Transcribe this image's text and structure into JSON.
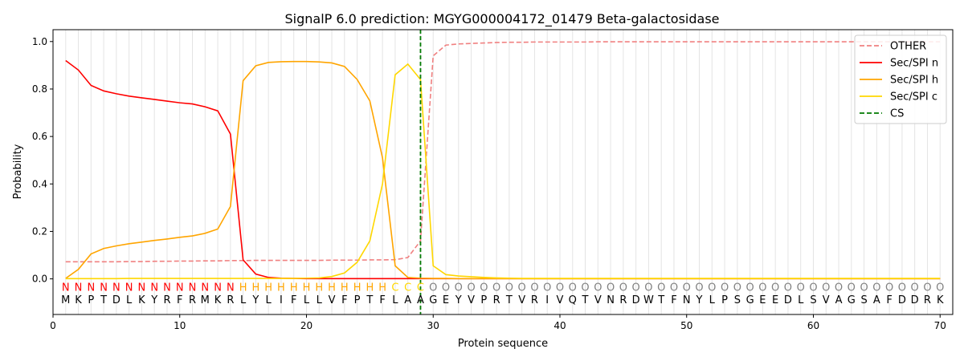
{
  "chart_data": {
    "type": "line",
    "title": "SignalP 6.0 prediction: MGYG000004172_01479 Beta-galactosidase",
    "xlabel": "Protein sequence",
    "ylabel": "Probability",
    "xlim": [
      0,
      71
    ],
    "ylim": [
      -0.15,
      1.05
    ],
    "xticks": [
      0,
      10,
      20,
      30,
      40,
      50,
      60,
      70
    ],
    "yticks": [
      0.0,
      0.2,
      0.4,
      0.6,
      0.8,
      1.0
    ],
    "xtick_labels": [
      "0",
      "10",
      "20",
      "30",
      "40",
      "50",
      "60",
      "70"
    ],
    "ytick_labels": [
      "0.0",
      "0.2",
      "0.4",
      "0.6",
      "0.8",
      "1.0"
    ],
    "grid": "vertical lines at each residue",
    "legend_position": "top-right",
    "sequence": [
      "M",
      "K",
      "P",
      "T",
      "D",
      "L",
      "K",
      "Y",
      "R",
      "F",
      "R",
      "M",
      "K",
      "R",
      "L",
      "Y",
      "L",
      "I",
      "F",
      "L",
      "L",
      "V",
      "F",
      "P",
      "T",
      "F",
      "L",
      "A",
      "A",
      "G",
      "E",
      "Y",
      "V",
      "P",
      "R",
      "T",
      "V",
      "R",
      "I",
      "V",
      "Q",
      "T",
      "V",
      "N",
      "R",
      "D",
      "W",
      "T",
      "F",
      "N",
      "Y",
      "L",
      "P",
      "S",
      "G",
      "E",
      "E",
      "D",
      "L",
      "S",
      "V",
      "A",
      "G",
      "S",
      "A",
      "F",
      "D",
      "D",
      "R",
      "K"
    ],
    "labels": [
      "N",
      "N",
      "N",
      "N",
      "N",
      "N",
      "N",
      "N",
      "N",
      "N",
      "N",
      "N",
      "N",
      "N",
      "H",
      "H",
      "H",
      "H",
      "H",
      "H",
      "H",
      "H",
      "H",
      "H",
      "H",
      "H",
      "C",
      "C",
      "C",
      "O",
      "O",
      "O",
      "O",
      "O",
      "O",
      "O",
      "O",
      "O",
      "O",
      "O",
      "O",
      "O",
      "O",
      "O",
      "O",
      "O",
      "O",
      "O",
      "O",
      "O",
      "O",
      "O",
      "O",
      "O",
      "O",
      "O",
      "O",
      "O",
      "O",
      "O",
      "O",
      "O",
      "O",
      "O",
      "O",
      "O",
      "O",
      "O",
      "O",
      "O"
    ],
    "label_colors": {
      "N": "#ff0000",
      "H": "#ffa500",
      "C": "#ffd700",
      "O": "#808080"
    },
    "cleavage_site": 29,
    "series": [
      {
        "name": "OTHER",
        "color": "#f08080",
        "dash": "dashed",
        "values": [
          0.072,
          0.072,
          0.072,
          0.072,
          0.072,
          0.073,
          0.073,
          0.074,
          0.074,
          0.075,
          0.075,
          0.076,
          0.076,
          0.077,
          0.077,
          0.078,
          0.078,
          0.078,
          0.078,
          0.078,
          0.078,
          0.079,
          0.079,
          0.079,
          0.08,
          0.08,
          0.081,
          0.09,
          0.16,
          0.94,
          0.985,
          0.99,
          0.992,
          0.994,
          0.996,
          0.997,
          0.997,
          0.998,
          0.998,
          0.998,
          0.998,
          0.998,
          0.999,
          0.999,
          0.999,
          0.999,
          0.999,
          0.999,
          0.999,
          0.999,
          0.999,
          0.999,
          0.999,
          0.999,
          0.999,
          0.999,
          0.999,
          0.999,
          0.999,
          0.999,
          0.999,
          0.999,
          0.999,
          0.999,
          0.999,
          0.999,
          0.999,
          0.999,
          0.999,
          0.999
        ]
      },
      {
        "name": "Sec/SPI n",
        "color": "#ff0000",
        "dash": "solid",
        "values": [
          0.92,
          0.88,
          0.815,
          0.792,
          0.78,
          0.77,
          0.763,
          0.756,
          0.749,
          0.742,
          0.737,
          0.725,
          0.708,
          0.61,
          0.08,
          0.02,
          0.006,
          0.003,
          0.002,
          0.001,
          0.001,
          0.001,
          0.001,
          0.001,
          0.001,
          0.001,
          0.001,
          0.001,
          0.001,
          0.001,
          0.001,
          0.001,
          0.001,
          0.001,
          0.001,
          0.001,
          0.001,
          0.001,
          0.001,
          0.001,
          0.001,
          0.001,
          0.001,
          0.001,
          0.001,
          0.001,
          0.001,
          0.001,
          0.001,
          0.001,
          0.001,
          0.001,
          0.001,
          0.001,
          0.001,
          0.001,
          0.001,
          0.001,
          0.001,
          0.001,
          0.001,
          0.001,
          0.001,
          0.001,
          0.001,
          0.001,
          0.001,
          0.001,
          0.001,
          0.001
        ]
      },
      {
        "name": "Sec/SPI h",
        "color": "#ffa500",
        "dash": "solid",
        "values": [
          0.002,
          0.04,
          0.105,
          0.128,
          0.139,
          0.148,
          0.155,
          0.162,
          0.168,
          0.175,
          0.181,
          0.192,
          0.21,
          0.305,
          0.835,
          0.898,
          0.912,
          0.915,
          0.916,
          0.916,
          0.914,
          0.91,
          0.895,
          0.84,
          0.75,
          0.51,
          0.055,
          0.006,
          0.003,
          0.002,
          0.002,
          0.001,
          0.001,
          0.001,
          0.001,
          0.001,
          0.001,
          0.001,
          0.001,
          0.001,
          0.001,
          0.001,
          0.001,
          0.001,
          0.001,
          0.001,
          0.001,
          0.001,
          0.001,
          0.001,
          0.001,
          0.001,
          0.001,
          0.001,
          0.001,
          0.001,
          0.001,
          0.001,
          0.001,
          0.001,
          0.001,
          0.001,
          0.001,
          0.001,
          0.001,
          0.001,
          0.001,
          0.001,
          0.001,
          0.001
        ]
      },
      {
        "name": "Sec/SPI c",
        "color": "#ffd700",
        "dash": "solid",
        "values": [
          0.001,
          0.001,
          0.001,
          0.001,
          0.001,
          0.002,
          0.002,
          0.002,
          0.002,
          0.002,
          0.002,
          0.002,
          0.002,
          0.002,
          0.002,
          0.002,
          0.002,
          0.002,
          0.002,
          0.003,
          0.004,
          0.01,
          0.025,
          0.07,
          0.16,
          0.4,
          0.86,
          0.905,
          0.84,
          0.055,
          0.018,
          0.012,
          0.009,
          0.006,
          0.004,
          0.003,
          0.002,
          0.002,
          0.002,
          0.002,
          0.002,
          0.002,
          0.002,
          0.002,
          0.002,
          0.002,
          0.002,
          0.002,
          0.002,
          0.002,
          0.002,
          0.002,
          0.002,
          0.002,
          0.002,
          0.002,
          0.002,
          0.002,
          0.002,
          0.002,
          0.002,
          0.002,
          0.002,
          0.002,
          0.002,
          0.002,
          0.002,
          0.002,
          0.002,
          0.002
        ]
      },
      {
        "name": "CS",
        "color": "#007a00",
        "dash": "dashed",
        "x": 29
      }
    ]
  }
}
